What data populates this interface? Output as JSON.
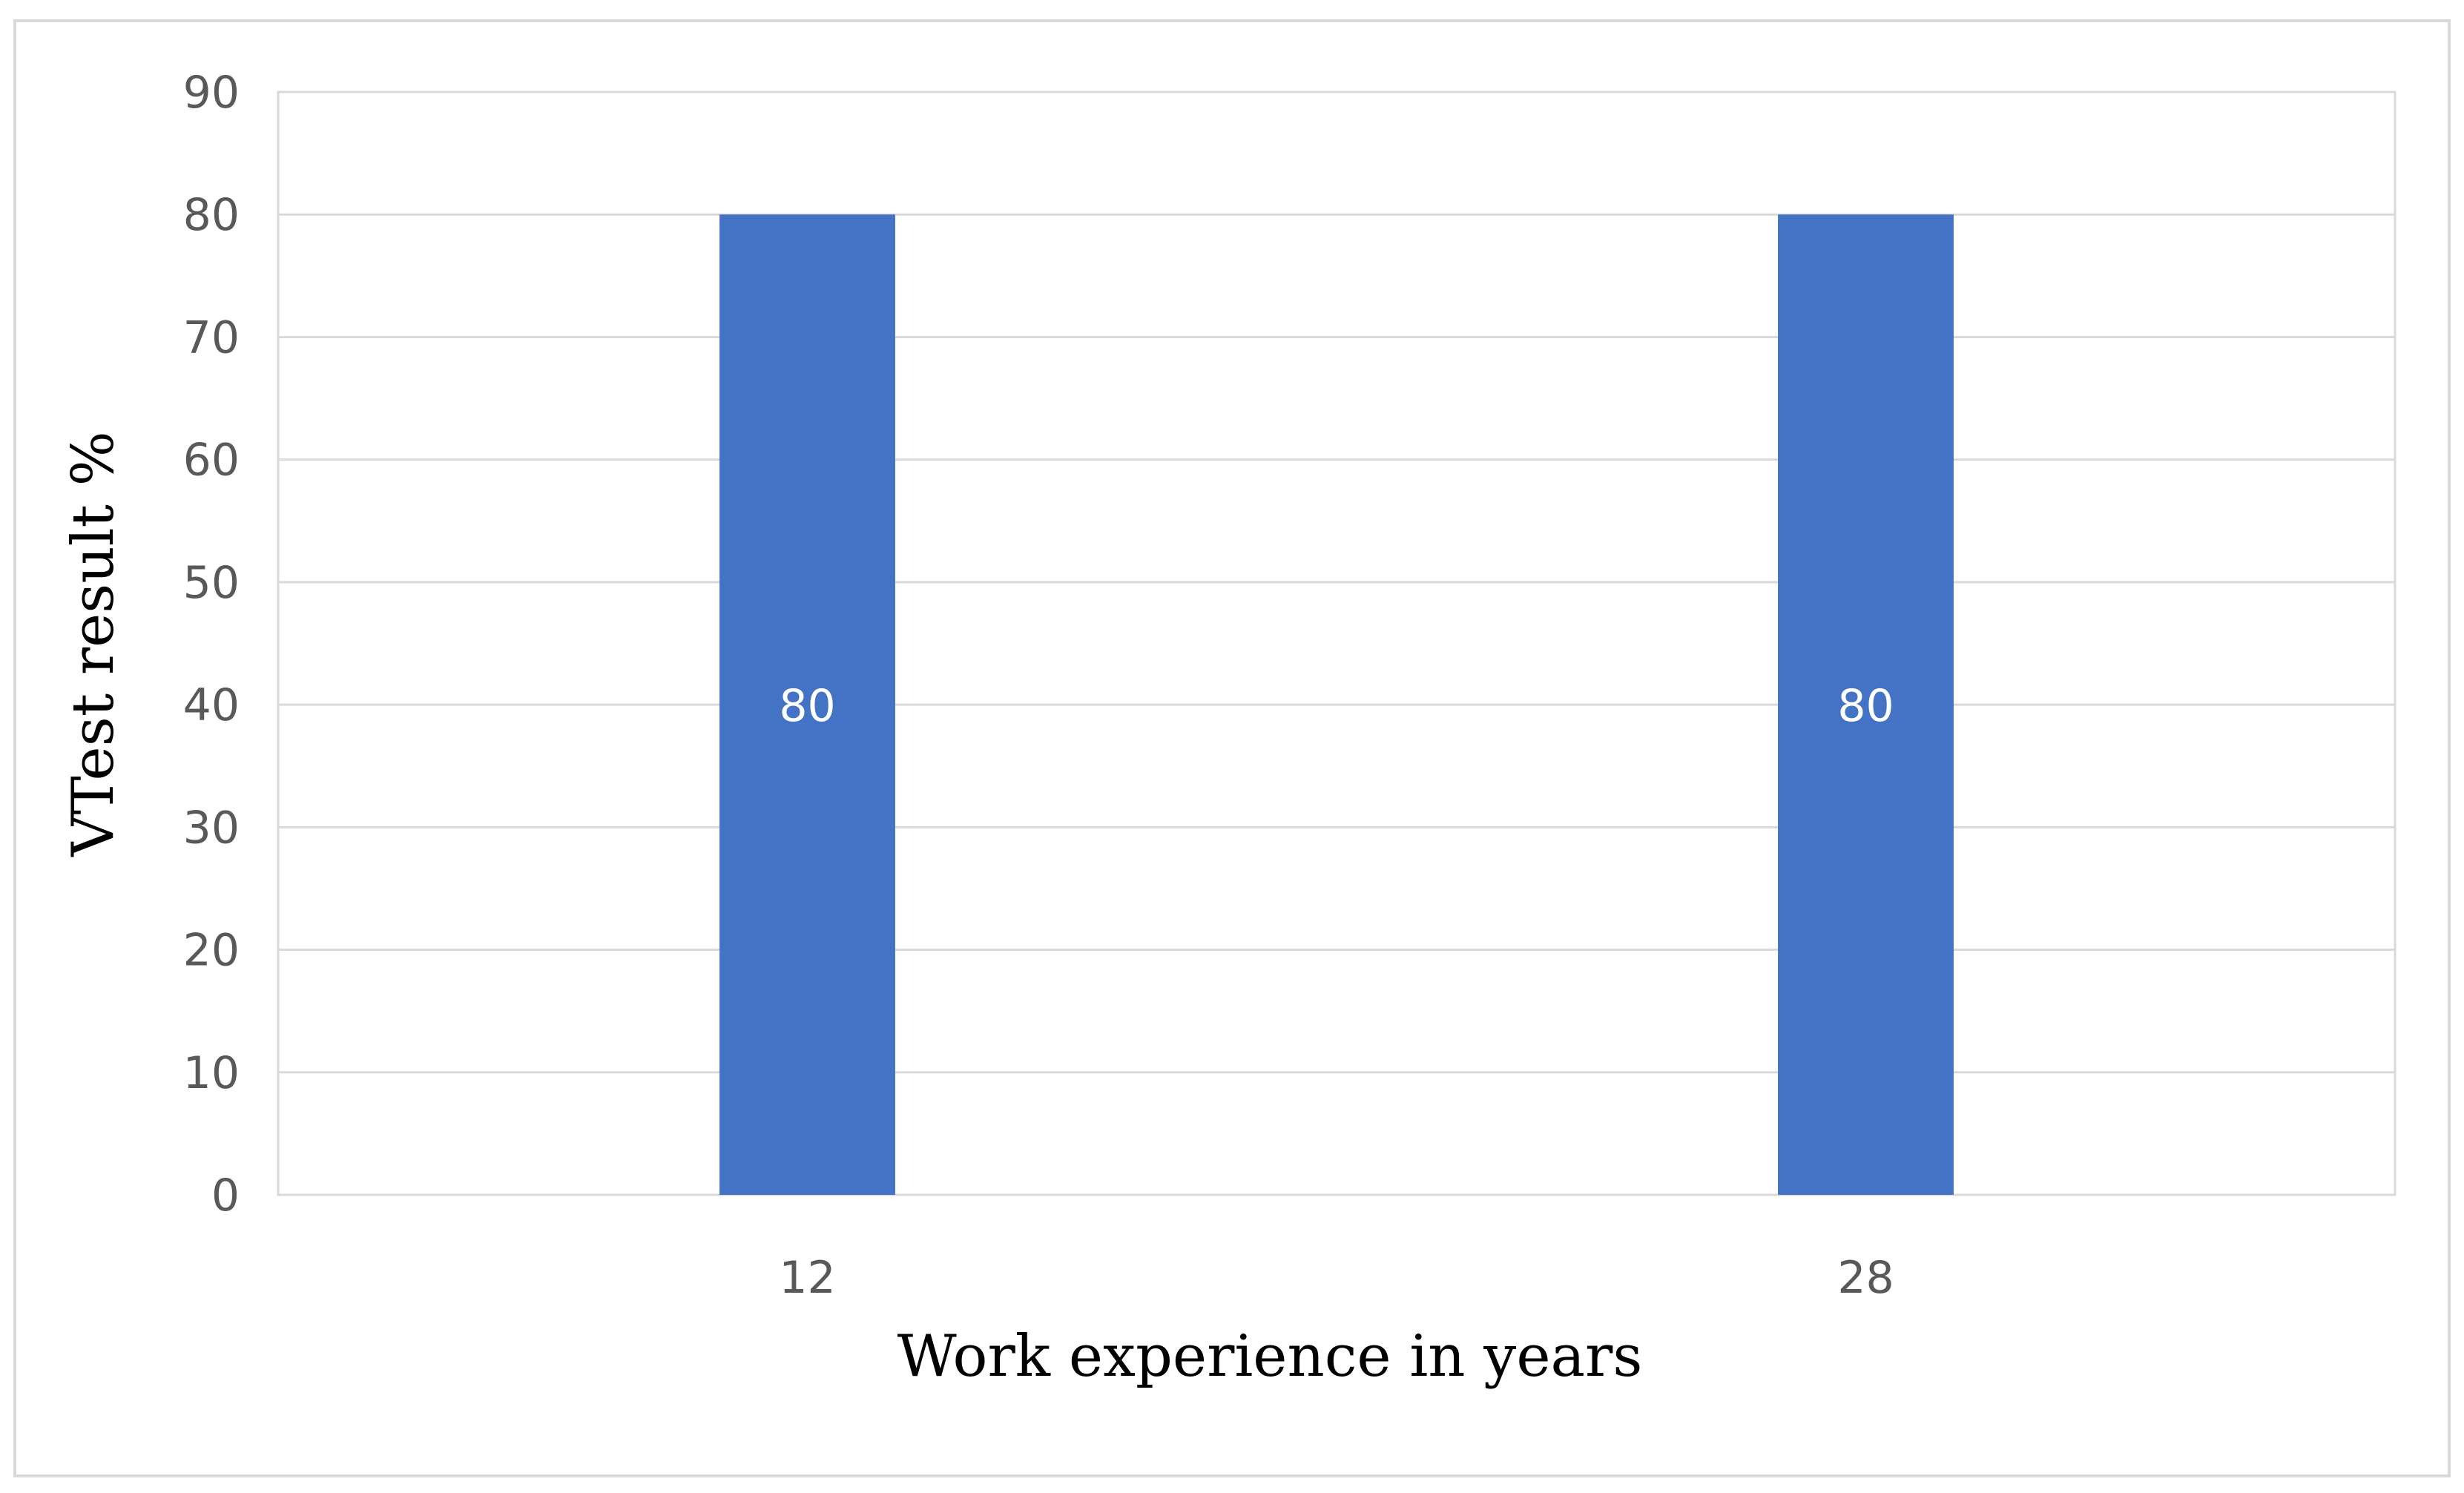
{
  "chart_data": {
    "type": "bar",
    "categories": [
      "12",
      "28"
    ],
    "values": [
      80,
      80
    ],
    "data_labels": [
      "80",
      "80"
    ],
    "xlabel": "Work experience in years",
    "ylabel": "VTest result %",
    "ylim": [
      0,
      90
    ],
    "yticks": [
      "0",
      "10",
      "20",
      "30",
      "40",
      "50",
      "60",
      "70",
      "80",
      "90"
    ],
    "grid": true,
    "legend": "none",
    "colors": {
      "bar": "#4472c4",
      "grid": "#d9d9d9",
      "plot_border": "#d9d9d9",
      "frame_border": "#d9d9d9",
      "tick_text": "#595959",
      "data_label_text": "#ffffff"
    }
  }
}
